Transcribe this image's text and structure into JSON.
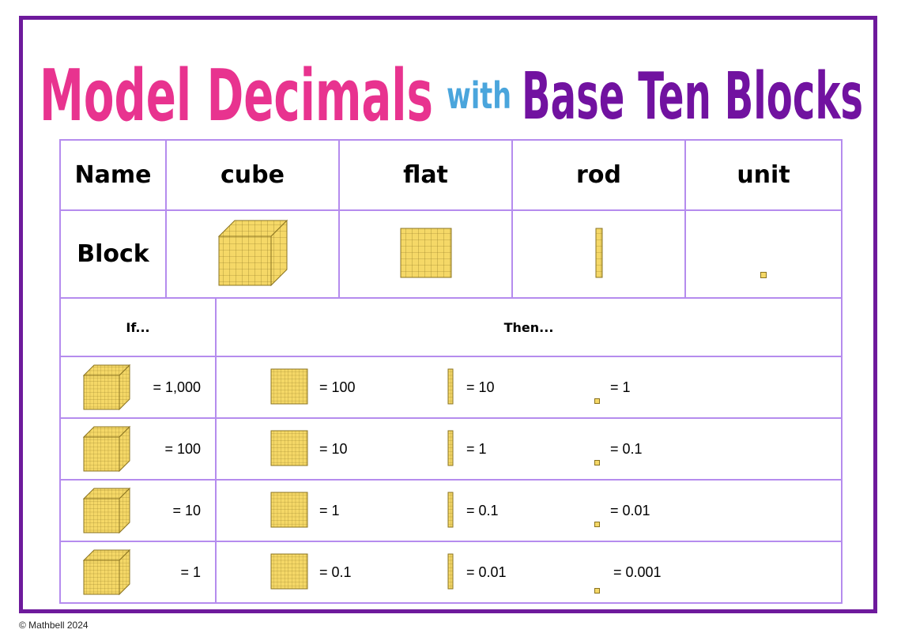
{
  "title": {
    "part1": "Model Decimals",
    "part2": "with",
    "part3": "Base Ten Blocks",
    "colors": {
      "part1": "#e8338f",
      "part2": "#4aa5dc",
      "part3": "#7112a0"
    }
  },
  "colors": {
    "frame": "#6e1a9c",
    "grid": "#b58cee",
    "block_fill": "#f5d867",
    "block_line": "#8a7320"
  },
  "table1": {
    "name_label": "Name",
    "block_label": "Block",
    "columns": [
      "cube",
      "flat",
      "rod",
      "unit"
    ]
  },
  "table2": {
    "if_header": "If...",
    "then_header": "Then...",
    "rows": [
      {
        "cube": "= 1,000",
        "flat": "= 100",
        "rod": "= 10",
        "unit": "= 1"
      },
      {
        "cube": "= 100",
        "flat": "= 10",
        "rod": "= 1",
        "unit": "= 0.1"
      },
      {
        "cube": "= 10",
        "flat": "= 1",
        "rod": "= 0.1",
        "unit": "= 0.01"
      },
      {
        "cube": "= 1",
        "flat": "= 0.1",
        "rod": "= 0.01",
        "unit": "= 0.001"
      }
    ]
  },
  "copyright": "© Mathbell 2024"
}
